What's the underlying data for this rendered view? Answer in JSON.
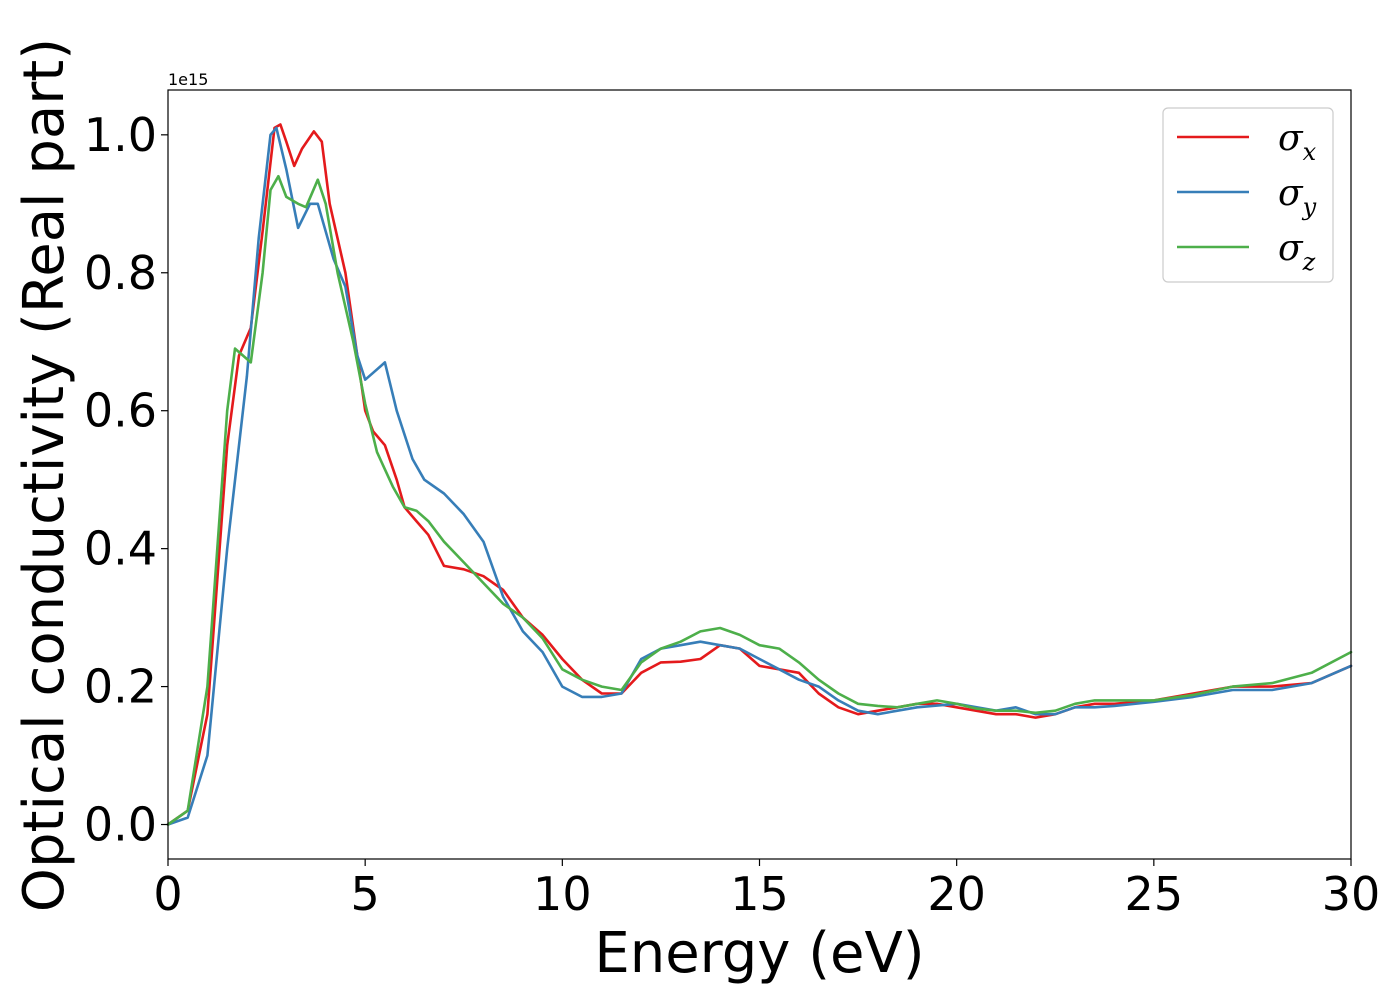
{
  "chart_data": {
    "type": "line",
    "xlabel": "Energy (eV)",
    "ylabel": "Optical conductivity (Real part)",
    "y_offset_label": "1e15",
    "xlim": [
      0,
      30
    ],
    "ylim": [
      -0.05,
      1.065
    ],
    "x_ticks": [
      0,
      5,
      10,
      15,
      20,
      25,
      30
    ],
    "x_tick_labels": [
      "0",
      "5",
      "10",
      "15",
      "20",
      "25",
      "30"
    ],
    "y_ticks": [
      0.0,
      0.2,
      0.4,
      0.6,
      0.8,
      1.0
    ],
    "y_tick_labels": [
      "0.0",
      "0.2",
      "0.4",
      "0.6",
      "0.8",
      "1.0"
    ],
    "grid": false,
    "legend_position": "top-right",
    "series": [
      {
        "name": "σ",
        "subscript": "x",
        "color": "#e41a1c",
        "points": [
          [
            0,
            0
          ],
          [
            0.5,
            0.02
          ],
          [
            1.0,
            0.16
          ],
          [
            1.5,
            0.55
          ],
          [
            1.8,
            0.68
          ],
          [
            2.1,
            0.72
          ],
          [
            2.4,
            0.86
          ],
          [
            2.7,
            1.01
          ],
          [
            2.85,
            1.015
          ],
          [
            3.0,
            0.99
          ],
          [
            3.2,
            0.955
          ],
          [
            3.4,
            0.98
          ],
          [
            3.7,
            1.005
          ],
          [
            3.9,
            0.99
          ],
          [
            4.1,
            0.9
          ],
          [
            4.5,
            0.8
          ],
          [
            5.0,
            0.6
          ],
          [
            5.2,
            0.57
          ],
          [
            5.5,
            0.55
          ],
          [
            5.8,
            0.5
          ],
          [
            6.0,
            0.46
          ],
          [
            6.3,
            0.44
          ],
          [
            6.6,
            0.42
          ],
          [
            7.0,
            0.375
          ],
          [
            7.5,
            0.37
          ],
          [
            8.0,
            0.36
          ],
          [
            8.5,
            0.34
          ],
          [
            9.0,
            0.3
          ],
          [
            9.5,
            0.275
          ],
          [
            10.0,
            0.24
          ],
          [
            10.5,
            0.21
          ],
          [
            11.0,
            0.19
          ],
          [
            11.5,
            0.19
          ],
          [
            12.0,
            0.22
          ],
          [
            12.5,
            0.235
          ],
          [
            13.0,
            0.236
          ],
          [
            13.5,
            0.24
          ],
          [
            14.0,
            0.26
          ],
          [
            14.5,
            0.255
          ],
          [
            15.0,
            0.23
          ],
          [
            15.5,
            0.225
          ],
          [
            16.0,
            0.22
          ],
          [
            16.5,
            0.19
          ],
          [
            17.0,
            0.17
          ],
          [
            17.5,
            0.16
          ],
          [
            18.0,
            0.165
          ],
          [
            18.5,
            0.17
          ],
          [
            19.0,
            0.175
          ],
          [
            19.5,
            0.175
          ],
          [
            20.0,
            0.17
          ],
          [
            21.0,
            0.16
          ],
          [
            21.5,
            0.16
          ],
          [
            22.0,
            0.155
          ],
          [
            22.5,
            0.16
          ],
          [
            23.0,
            0.17
          ],
          [
            23.5,
            0.175
          ],
          [
            24.0,
            0.175
          ],
          [
            25.0,
            0.18
          ],
          [
            26.0,
            0.19
          ],
          [
            27.0,
            0.2
          ],
          [
            28.0,
            0.2
          ],
          [
            29.0,
            0.205
          ],
          [
            30.0,
            0.23
          ]
        ]
      },
      {
        "name": "σ",
        "subscript": "y",
        "color": "#377eb8",
        "points": [
          [
            0,
            0
          ],
          [
            0.5,
            0.01
          ],
          [
            1.0,
            0.1
          ],
          [
            1.5,
            0.4
          ],
          [
            2.0,
            0.65
          ],
          [
            2.3,
            0.85
          ],
          [
            2.6,
            1.0
          ],
          [
            2.75,
            1.01
          ],
          [
            3.0,
            0.95
          ],
          [
            3.3,
            0.865
          ],
          [
            3.6,
            0.9
          ],
          [
            3.8,
            0.9
          ],
          [
            4.2,
            0.82
          ],
          [
            4.5,
            0.78
          ],
          [
            4.8,
            0.68
          ],
          [
            5.0,
            0.645
          ],
          [
            5.2,
            0.655
          ],
          [
            5.5,
            0.67
          ],
          [
            5.8,
            0.6
          ],
          [
            6.2,
            0.53
          ],
          [
            6.5,
            0.5
          ],
          [
            7.0,
            0.48
          ],
          [
            7.5,
            0.45
          ],
          [
            8.0,
            0.41
          ],
          [
            8.5,
            0.33
          ],
          [
            9.0,
            0.28
          ],
          [
            9.5,
            0.25
          ],
          [
            10.0,
            0.2
          ],
          [
            10.5,
            0.185
          ],
          [
            11.0,
            0.185
          ],
          [
            11.5,
            0.19
          ],
          [
            12.0,
            0.24
          ],
          [
            12.5,
            0.255
          ],
          [
            13.0,
            0.26
          ],
          [
            13.5,
            0.265
          ],
          [
            14.0,
            0.26
          ],
          [
            14.5,
            0.255
          ],
          [
            15.0,
            0.24
          ],
          [
            15.5,
            0.225
          ],
          [
            16.0,
            0.21
          ],
          [
            16.5,
            0.2
          ],
          [
            17.0,
            0.18
          ],
          [
            17.5,
            0.165
          ],
          [
            18.0,
            0.16
          ],
          [
            18.5,
            0.165
          ],
          [
            19.0,
            0.17
          ],
          [
            20.0,
            0.175
          ],
          [
            21.0,
            0.165
          ],
          [
            21.5,
            0.17
          ],
          [
            22.0,
            0.16
          ],
          [
            22.5,
            0.16
          ],
          [
            23.0,
            0.17
          ],
          [
            23.5,
            0.17
          ],
          [
            24.0,
            0.172
          ],
          [
            25.0,
            0.178
          ],
          [
            26.0,
            0.185
          ],
          [
            27.0,
            0.195
          ],
          [
            28.0,
            0.195
          ],
          [
            29.0,
            0.205
          ],
          [
            30.0,
            0.23
          ]
        ]
      },
      {
        "name": "σ",
        "subscript": "z",
        "color": "#4daf4a",
        "points": [
          [
            0,
            0
          ],
          [
            0.5,
            0.02
          ],
          [
            1.0,
            0.2
          ],
          [
            1.5,
            0.6
          ],
          [
            1.7,
            0.69
          ],
          [
            1.9,
            0.68
          ],
          [
            2.1,
            0.67
          ],
          [
            2.4,
            0.8
          ],
          [
            2.6,
            0.92
          ],
          [
            2.8,
            0.94
          ],
          [
            3.0,
            0.91
          ],
          [
            3.3,
            0.9
          ],
          [
            3.5,
            0.895
          ],
          [
            3.8,
            0.935
          ],
          [
            4.0,
            0.9
          ],
          [
            4.3,
            0.8
          ],
          [
            4.7,
            0.7
          ],
          [
            5.0,
            0.61
          ],
          [
            5.3,
            0.54
          ],
          [
            5.7,
            0.49
          ],
          [
            6.0,
            0.46
          ],
          [
            6.3,
            0.455
          ],
          [
            6.6,
            0.44
          ],
          [
            7.0,
            0.41
          ],
          [
            7.5,
            0.38
          ],
          [
            8.0,
            0.35
          ],
          [
            8.5,
            0.32
          ],
          [
            9.0,
            0.3
          ],
          [
            9.5,
            0.27
          ],
          [
            10.0,
            0.225
          ],
          [
            10.5,
            0.21
          ],
          [
            11.0,
            0.2
          ],
          [
            11.5,
            0.195
          ],
          [
            12.0,
            0.235
          ],
          [
            12.5,
            0.255
          ],
          [
            13.0,
            0.265
          ],
          [
            13.5,
            0.28
          ],
          [
            14.0,
            0.285
          ],
          [
            14.5,
            0.275
          ],
          [
            15.0,
            0.26
          ],
          [
            15.5,
            0.255
          ],
          [
            16.0,
            0.235
          ],
          [
            16.5,
            0.21
          ],
          [
            17.0,
            0.19
          ],
          [
            17.5,
            0.175
          ],
          [
            18.0,
            0.172
          ],
          [
            18.5,
            0.17
          ],
          [
            19.0,
            0.175
          ],
          [
            19.5,
            0.18
          ],
          [
            20.0,
            0.175
          ],
          [
            20.5,
            0.168
          ],
          [
            21.0,
            0.165
          ],
          [
            21.5,
            0.165
          ],
          [
            22.0,
            0.162
          ],
          [
            22.5,
            0.165
          ],
          [
            23.0,
            0.175
          ],
          [
            23.5,
            0.18
          ],
          [
            24.0,
            0.18
          ],
          [
            25.0,
            0.18
          ],
          [
            26.0,
            0.188
          ],
          [
            27.0,
            0.2
          ],
          [
            28.0,
            0.205
          ],
          [
            29.0,
            0.22
          ],
          [
            30.0,
            0.25
          ]
        ]
      }
    ]
  }
}
